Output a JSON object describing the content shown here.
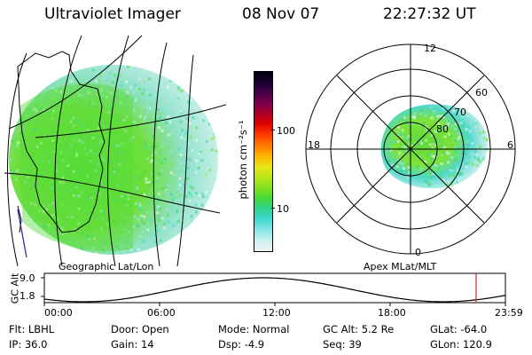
{
  "header": {
    "title": "Ultraviolet Imager",
    "date": "08 Nov 07",
    "time": "22:27:32 UT"
  },
  "geo_panel": {
    "label": "Geographic Lat/Lon"
  },
  "colorbar": {
    "unit_label": "photon cm⁻²s⁻¹",
    "ticks": [
      "100",
      "10"
    ],
    "scale": "log",
    "colors": [
      "#f2f2f2",
      "#c8f0f0",
      "#88e6e6",
      "#3ed8cf",
      "#2fd28a",
      "#43d83e",
      "#7fe01f",
      "#b8e61a",
      "#e6e61a",
      "#ffb400",
      "#ff7800",
      "#ff3a00",
      "#e00000",
      "#b00020",
      "#80004a",
      "#4a004a",
      "#1a0030",
      "#000010"
    ]
  },
  "polar_panel": {
    "label": "Apex MLat/MLT",
    "mlt_labels": [
      "12",
      "18",
      "6",
      "0"
    ],
    "lat_labels": [
      "60",
      "70",
      "80"
    ]
  },
  "altitude_plot": {
    "ylabel": "GC Alt",
    "yticks": [
      "9.0",
      "1.8"
    ],
    "xticks": [
      "00:00",
      "06:00",
      "12:00",
      "18:00",
      "23:59"
    ],
    "marker_color": "#cc2222"
  },
  "footer": {
    "row1": [
      {
        "label": "Flt:",
        "value": "LBHL"
      },
      {
        "label": "Door:",
        "value": "Open"
      },
      {
        "label": "Mode:",
        "value": "Normal"
      },
      {
        "label": "GC Alt:",
        "value": "5.2 Re"
      },
      {
        "label": "GLat:",
        "value": "-64.0"
      }
    ],
    "row2": [
      {
        "label": "IP:",
        "value": "36.0"
      },
      {
        "label": "Gain:",
        "value": "14"
      },
      {
        "label": "Dsp:",
        "value": "-4.9"
      },
      {
        "label": "Seq:",
        "value": "39"
      },
      {
        "label": "GLon:",
        "value": "120.9"
      }
    ]
  }
}
